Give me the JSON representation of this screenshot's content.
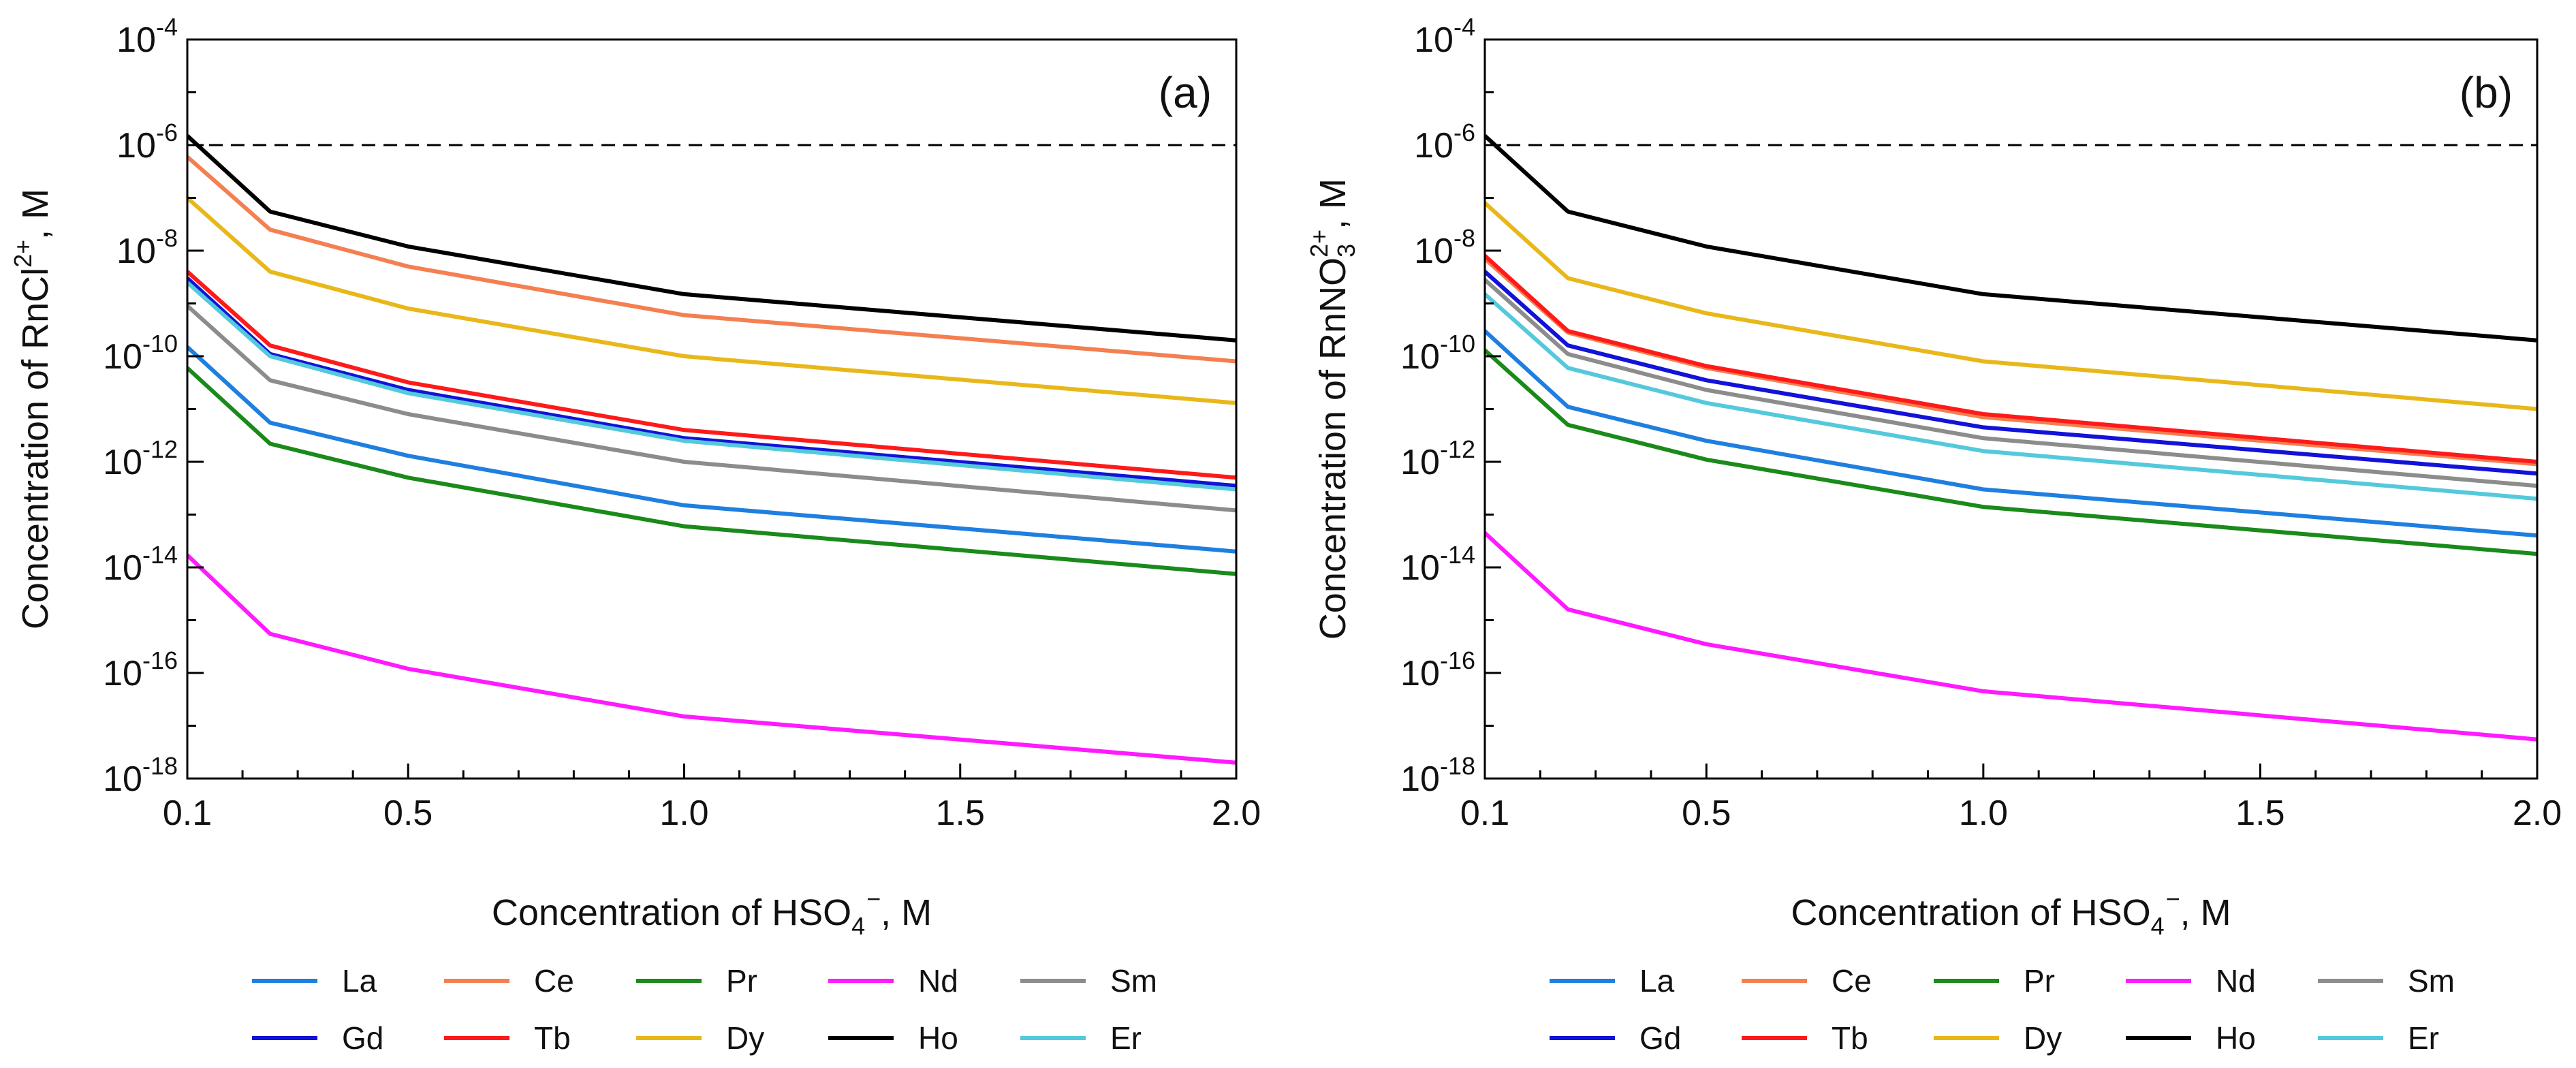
{
  "chart_data": [
    {
      "type": "line",
      "panel_label": "(a)",
      "ylabel_main": "Concentration of RnCl",
      "ylabel_sup": "2+",
      "ylabel_tail": ", M",
      "xlabel_main": "Concentration of HSO",
      "xlabel_sub": "4",
      "xlabel_sup": "−",
      "xlabel_tail": ", M",
      "yscale": "log",
      "ylim_exp": [
        -18,
        -4
      ],
      "xlim": [
        0.1,
        2.0
      ],
      "xticks": [
        "0.1",
        "0.5",
        "1.0",
        "1.5",
        "2.0"
      ],
      "yticks_exp": [
        "-4",
        "-6",
        "-8",
        "-10",
        "-12",
        "-14",
        "-16",
        "-18"
      ],
      "ytick_base": "10",
      "reference_line": 1e-06,
      "x": [
        0.1,
        0.25,
        0.5,
        1.0,
        2.0
      ],
      "series": [
        {
          "name": "La",
          "color": "#1f7fe0",
          "values": [
            1.5e-10,
            5.5e-12,
            1.3e-12,
            1.5e-13,
            2e-14
          ]
        },
        {
          "name": "Ce",
          "color": "#f47f50",
          "values": [
            6e-07,
            2.5e-08,
            5e-09,
            6e-10,
            8e-11
          ]
        },
        {
          "name": "Pr",
          "color": "#1a8a1a",
          "values": [
            6e-11,
            2.2e-12,
            5e-13,
            6e-14,
            7.5e-15
          ]
        },
        {
          "name": "Nd",
          "color": "#ff1aff",
          "values": [
            1.7e-14,
            5.5e-16,
            1.2e-16,
            1.5e-17,
            2e-18
          ]
        },
        {
          "name": "Sm",
          "color": "#8c8c8c",
          "values": [
            9e-10,
            3.5e-11,
            8e-12,
            1e-12,
            1.2e-13
          ]
        },
        {
          "name": "Gd",
          "color": "#1212d8",
          "values": [
            3e-09,
            1.1e-10,
            2.3e-11,
            2.8e-12,
            3.5e-13
          ]
        },
        {
          "name": "Tb",
          "color": "#ff1a1a",
          "values": [
            4e-09,
            1.6e-10,
            3.2e-11,
            4e-12,
            5e-13
          ]
        },
        {
          "name": "Dy",
          "color": "#e8b81a",
          "values": [
            1e-07,
            4e-09,
            8e-10,
            1e-10,
            1.3e-11
          ]
        },
        {
          "name": "Ho",
          "color": "#000000",
          "values": [
            1.5e-06,
            5.5e-08,
            1.2e-08,
            1.5e-09,
            2e-10
          ]
        },
        {
          "name": "Er",
          "color": "#55c9dc",
          "values": [
            2.5e-09,
            1e-10,
            2e-11,
            2.5e-12,
            3e-13
          ]
        }
      ]
    },
    {
      "type": "line",
      "panel_label": "(b)",
      "ylabel_main": "Concentration of RnNO",
      "ylabel_sub": "3",
      "ylabel_sup": "2+",
      "ylabel_tail": ", M",
      "xlabel_main": "Concentration of HSO",
      "xlabel_sub": "4",
      "xlabel_sup": "−",
      "xlabel_tail": ", M",
      "yscale": "log",
      "ylim_exp": [
        -18,
        -4
      ],
      "xlim": [
        0.1,
        2.0
      ],
      "xticks": [
        "0.1",
        "0.5",
        "1.0",
        "1.5",
        "2.0"
      ],
      "yticks_exp": [
        "-4",
        "-6",
        "-8",
        "-10",
        "-12",
        "-14",
        "-16",
        "-18"
      ],
      "ytick_base": "10",
      "reference_line": 1e-06,
      "x": [
        0.1,
        0.25,
        0.5,
        1.0,
        2.0
      ],
      "series": [
        {
          "name": "La",
          "color": "#1f7fe0",
          "values": [
            3e-10,
            1.1e-11,
            2.5e-12,
            3e-13,
            4e-14
          ]
        },
        {
          "name": "Ce",
          "color": "#f47f50",
          "values": [
            7e-09,
            2.8e-10,
            6e-11,
            7e-12,
            9e-13
          ]
        },
        {
          "name": "Pr",
          "color": "#1a8a1a",
          "values": [
            1.3e-10,
            5e-12,
            1.1e-12,
            1.4e-13,
            1.8e-14
          ]
        },
        {
          "name": "Nd",
          "color": "#ff1aff",
          "values": [
            4.5e-14,
            1.6e-15,
            3.5e-16,
            4.5e-17,
            5.5e-18
          ]
        },
        {
          "name": "Sm",
          "color": "#8c8c8c",
          "values": [
            2.8e-09,
            1.1e-10,
            2.3e-11,
            2.8e-12,
            3.5e-13
          ]
        },
        {
          "name": "Gd",
          "color": "#1212d8",
          "values": [
            4e-09,
            1.6e-10,
            3.5e-11,
            4.5e-12,
            6e-13
          ]
        },
        {
          "name": "Tb",
          "color": "#ff1a1a",
          "values": [
            8e-09,
            3e-10,
            6.5e-11,
            8e-12,
            1e-12
          ]
        },
        {
          "name": "Dy",
          "color": "#e8b81a",
          "values": [
            8e-08,
            3e-09,
            6.5e-10,
            8e-11,
            1e-11
          ]
        },
        {
          "name": "Ho",
          "color": "#000000",
          "values": [
            1.5e-06,
            5.5e-08,
            1.2e-08,
            1.5e-09,
            2e-10
          ]
        },
        {
          "name": "Er",
          "color": "#55c9dc",
          "values": [
            1.5e-09,
            6e-11,
            1.3e-11,
            1.6e-12,
            2e-13
          ]
        }
      ]
    }
  ]
}
